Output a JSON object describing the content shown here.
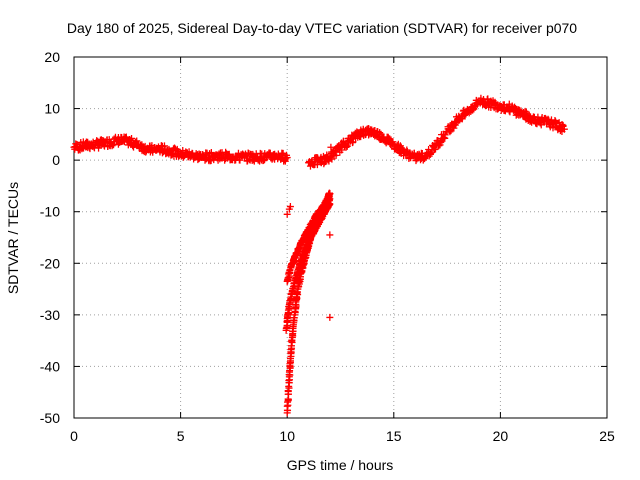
{
  "chart_data": {
    "type": "scatter",
    "title": "Day 180 of 2025, Sidereal Day-to-day VTEC variation (SDTVAR) for receiver p070",
    "xlabel": "GPS time / hours",
    "ylabel": "SDTVAR / TECUs",
    "xlim": [
      0,
      25
    ],
    "ylim": [
      -50,
      20
    ],
    "xticks": [
      "0",
      "5",
      "10",
      "15",
      "20",
      "25"
    ],
    "yticks": [
      "20",
      "10",
      "0",
      "-10",
      "-20",
      "-30",
      "-40",
      "-50"
    ],
    "grid": true,
    "marker": "+",
    "color": "#ff0000",
    "series": [
      {
        "name": "main-band",
        "x": [
          0.0,
          0.5,
          1.0,
          1.5,
          2.0,
          2.5,
          3.0,
          3.5,
          4.0,
          4.5,
          5.0,
          5.5,
          6.0,
          6.5,
          7.0,
          7.5,
          8.0,
          8.5,
          9.0,
          9.5,
          10.0
        ],
        "y": [
          2.5,
          2.8,
          3.0,
          3.3,
          3.8,
          3.7,
          3.0,
          2.0,
          2.2,
          1.8,
          1.2,
          1.0,
          0.6,
          0.7,
          0.8,
          0.6,
          0.6,
          0.6,
          0.6,
          0.8,
          0.5
        ]
      },
      {
        "name": "recovery-band",
        "x": [
          11.0,
          11.5,
          12.0,
          12.5,
          13.0,
          13.5,
          14.0,
          14.5,
          15.0,
          15.5,
          16.0,
          16.5,
          17.0,
          17.5,
          18.0,
          18.5,
          19.0,
          19.5,
          20.0,
          20.5,
          21.0,
          21.5,
          22.0,
          22.5,
          23.0
        ],
        "y": [
          -0.5,
          -0.2,
          0.5,
          2.5,
          4.0,
          5.5,
          5.5,
          4.5,
          3.0,
          1.5,
          0.5,
          0.8,
          3.0,
          5.5,
          8.0,
          9.5,
          11.5,
          11.0,
          10.5,
          10.0,
          9.0,
          8.0,
          7.5,
          7.0,
          6.0
        ]
      },
      {
        "name": "dip-curve-1",
        "x": [
          10.0,
          10.1,
          10.2,
          10.35,
          10.5,
          10.7,
          10.9,
          11.1,
          11.3,
          11.5,
          11.7,
          11.9,
          12.0
        ],
        "y": [
          -49.0,
          -42.0,
          -36.0,
          -30.0,
          -25.0,
          -21.0,
          -18.0,
          -15.0,
          -13.0,
          -11.0,
          -9.0,
          -7.5,
          -6.5
        ]
      },
      {
        "name": "dip-curve-2",
        "x": [
          9.95,
          10.1,
          10.3,
          10.5,
          10.7,
          10.9,
          11.1,
          11.3,
          11.5,
          11.7,
          11.9,
          12.0
        ],
        "y": [
          -33.0,
          -28.0,
          -24.5,
          -21.5,
          -19.0,
          -17.0,
          -15.0,
          -13.5,
          -12.0,
          -10.5,
          -9.0,
          -8.5
        ]
      },
      {
        "name": "dip-curve-3",
        "x": [
          10.0,
          10.2,
          10.4,
          10.6,
          10.8,
          11.0,
          11.2,
          11.4,
          11.6,
          11.8,
          12.0
        ],
        "y": [
          -23.5,
          -20.5,
          -18.5,
          -16.5,
          -15.0,
          -13.5,
          -12.0,
          -10.5,
          -9.5,
          -8.5,
          -7.5
        ]
      },
      {
        "name": "isolated",
        "x": [
          10.0,
          10.1,
          10.15,
          12.0,
          12.0,
          12.05
        ],
        "y": [
          -10.5,
          -9.5,
          -9.0,
          -14.5,
          -30.5,
          2.5
        ]
      }
    ]
  }
}
